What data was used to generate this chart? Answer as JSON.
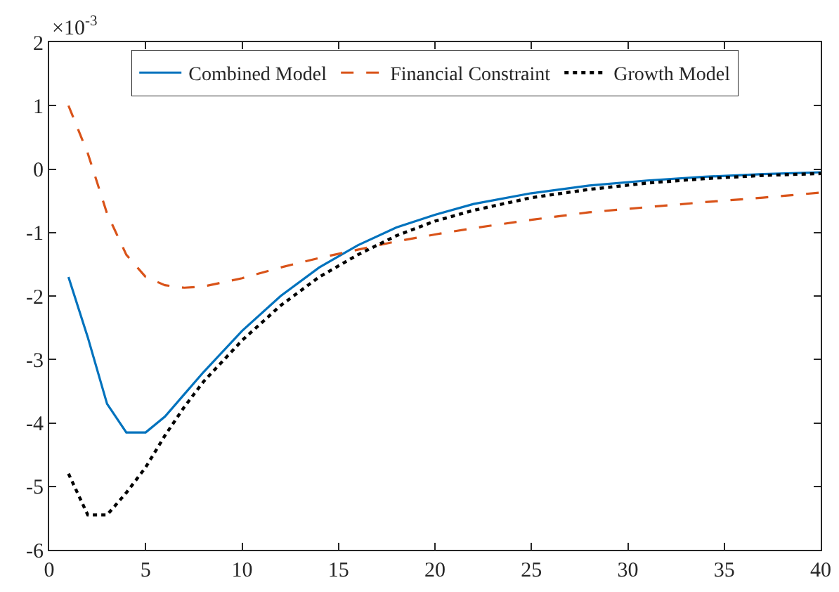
{
  "chart_data": {
    "type": "line",
    "x": [
      1,
      2,
      3,
      4,
      5,
      6,
      7,
      8,
      10,
      12,
      14,
      16,
      18,
      20,
      22,
      25,
      28,
      31,
      34,
      37,
      40
    ],
    "series": [
      {
        "name": "Combined Model",
        "color": "#0072bd",
        "line_style": "solid",
        "values": [
          -1.7,
          -2.65,
          -3.7,
          -4.15,
          -4.15,
          -3.9,
          -3.55,
          -3.2,
          -2.55,
          -2.0,
          -1.55,
          -1.2,
          -0.92,
          -0.72,
          -0.55,
          -0.38,
          -0.26,
          -0.18,
          -0.12,
          -0.08,
          -0.05
        ]
      },
      {
        "name": "Financial Constraint",
        "color": "#d95319",
        "line_style": "dashed",
        "values": [
          1.0,
          0.25,
          -0.7,
          -1.35,
          -1.7,
          -1.83,
          -1.87,
          -1.85,
          -1.72,
          -1.55,
          -1.4,
          -1.27,
          -1.14,
          -1.03,
          -0.93,
          -0.8,
          -0.68,
          -0.6,
          -0.52,
          -0.45,
          -0.37
        ]
      },
      {
        "name": "Growth Model",
        "color": "#000000",
        "line_style": "dotted",
        "values": [
          -4.8,
          -5.45,
          -5.45,
          -5.1,
          -4.7,
          -4.2,
          -3.75,
          -3.35,
          -2.7,
          -2.15,
          -1.7,
          -1.35,
          -1.05,
          -0.82,
          -0.65,
          -0.45,
          -0.32,
          -0.22,
          -0.15,
          -0.1,
          -0.07
        ]
      }
    ],
    "xlim": [
      0,
      40
    ],
    "xticks": [
      0,
      5,
      10,
      15,
      20,
      25,
      30,
      35,
      40
    ],
    "ylim": [
      -6,
      2
    ],
    "yticks": [
      -6,
      -5,
      -4,
      -3,
      -2,
      -1,
      0,
      1,
      2
    ],
    "annotations": [
      "×10$^{-3}$"
    ],
    "legend": "top",
    "grid": false,
    "marker": "none"
  }
}
